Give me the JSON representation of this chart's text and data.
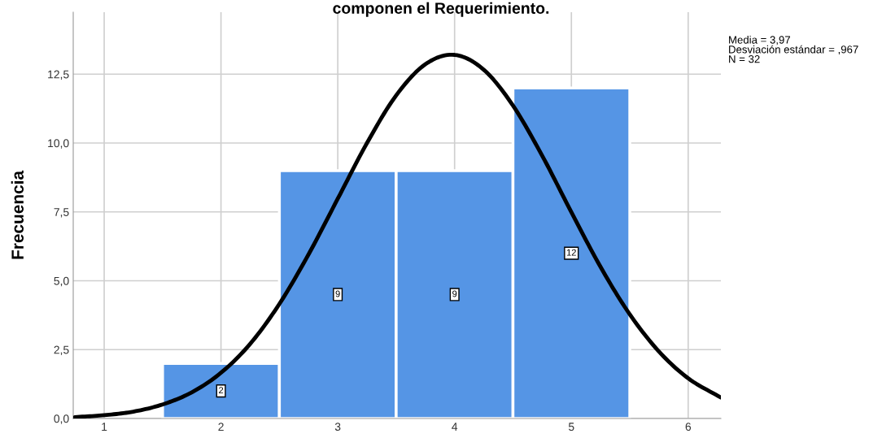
{
  "chart_data": {
    "type": "histogram",
    "title": "componen el Requerimiento.",
    "ylabel": "Frecuencia",
    "xlim": [
      0.735,
      6.28
    ],
    "ylim": [
      0,
      14.75
    ],
    "xticks": [
      1,
      2,
      3,
      4,
      5,
      6
    ],
    "yticks": [
      {
        "value": 0,
        "label": "0,0"
      },
      {
        "value": 2.5,
        "label": "2,5"
      },
      {
        "value": 5,
        "label": "5,0"
      },
      {
        "value": 7.5,
        "label": "7,5"
      },
      {
        "value": 10,
        "label": "10,0"
      },
      {
        "value": 12.5,
        "label": "12,5"
      }
    ],
    "grid": true,
    "annotations": [
      "Media = 3,97\nDesviación estándar = ,967\nN = 32"
    ],
    "series": [
      {
        "color": "#5595e5",
        "bins": [
          1.5,
          2.5,
          3.5,
          4.5,
          5.5
        ],
        "values": [
          2,
          9,
          9,
          12
        ],
        "value_labels": [
          "2",
          "9",
          "9",
          "12"
        ]
      },
      {
        "type": "line",
        "color": "#000000",
        "x": [
          0.75,
          1.0,
          1.25,
          1.5,
          1.75,
          2.0,
          2.25,
          2.5,
          2.75,
          3.0,
          3.25,
          3.5,
          3.75,
          4.0,
          4.25,
          4.5,
          4.75,
          5.0,
          5.25,
          5.5,
          5.75,
          6.0,
          6.28
        ],
        "values": [
          0.05,
          0.12,
          0.25,
          0.51,
          0.95,
          1.66,
          2.71,
          4.16,
          5.96,
          7.98,
          10.0,
          11.73,
          12.86,
          13.2,
          12.66,
          11.36,
          9.54,
          7.49,
          5.5,
          3.78,
          2.43,
          1.46,
          0.76
        ]
      }
    ]
  }
}
